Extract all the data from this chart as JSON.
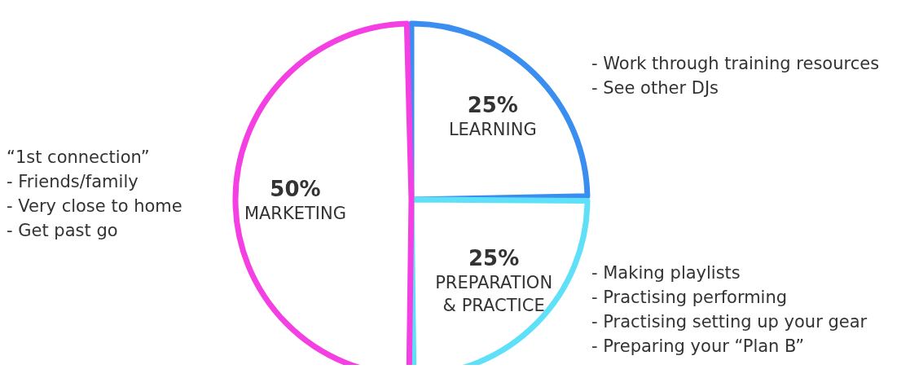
{
  "chart_data": {
    "type": "pie",
    "categories": [
      "LEARNING",
      "PREPARATION & PRACTICE",
      "MARKETING"
    ],
    "values": [
      25,
      25,
      50
    ],
    "value_labels": [
      "25%",
      "25%",
      "50%"
    ],
    "colors": [
      "#3a8ef0",
      "#5ee0f8",
      "#f43fe2"
    ],
    "legend": false,
    "annotations": [
      "- Work through training resources\n- See other DJs",
      "- Making playlists\n- Practising performing\n- Practising setting up your gear\n- Preparing your “Plan B”",
      "“1st connection”\n- Friends/family\n- Very close to home\n- Get past go"
    ]
  }
}
